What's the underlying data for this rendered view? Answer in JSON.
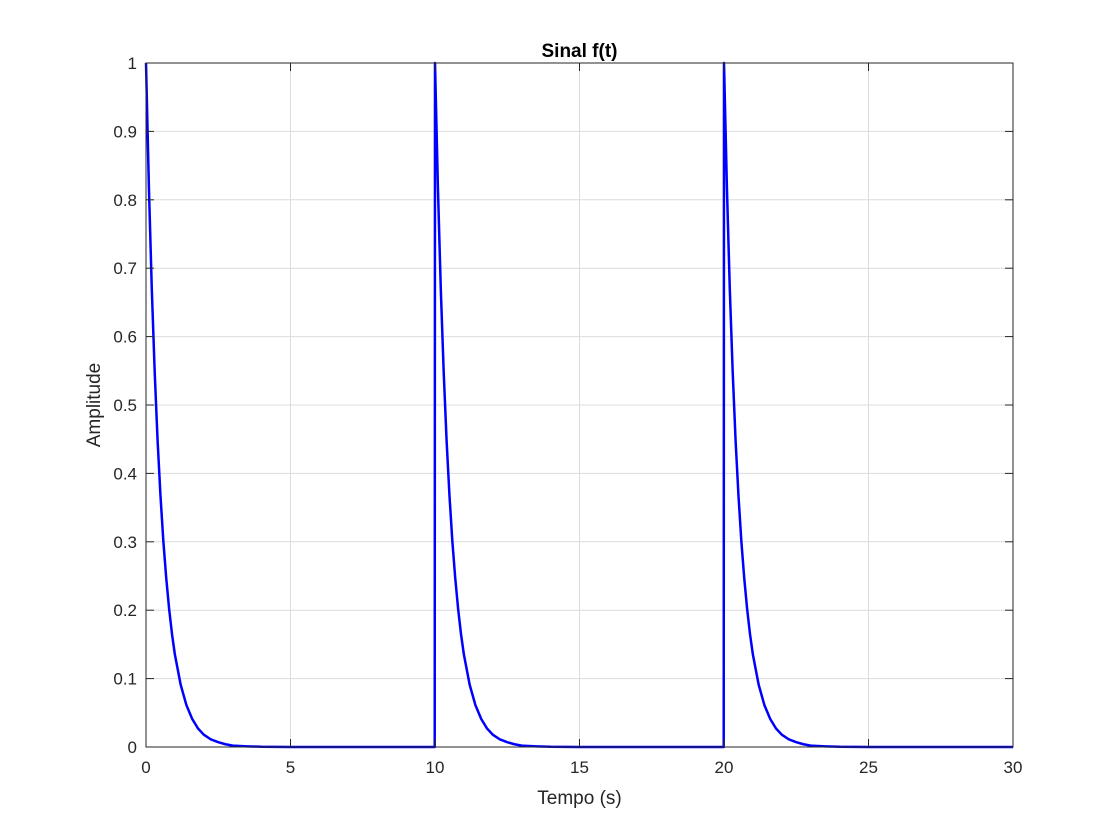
{
  "chart_data": {
    "type": "line",
    "title": "Sinal f(t)",
    "xlabel": "Tempo (s)",
    "ylabel": "Amplitude",
    "xlim": [
      0,
      30
    ],
    "ylim": [
      0,
      1
    ],
    "xticks": [
      0,
      5,
      10,
      15,
      20,
      25,
      30
    ],
    "xtick_labels": [
      "0",
      "5",
      "10",
      "15",
      "20",
      "25",
      "30"
    ],
    "yticks": [
      0,
      0.1,
      0.2,
      0.3,
      0.4,
      0.5,
      0.6,
      0.7,
      0.8,
      0.9,
      1
    ],
    "ytick_labels": [
      "0",
      "0.1",
      "0.2",
      "0.3",
      "0.4",
      "0.5",
      "0.6",
      "0.7",
      "0.8",
      "0.9",
      "1"
    ],
    "grid": true,
    "legend": "none",
    "series": [
      {
        "color": "#0000ff",
        "x": [
          0,
          0.1,
          0.2,
          0.3,
          0.4,
          0.5,
          0.6,
          0.7,
          0.8,
          0.9,
          1.0,
          1.2,
          1.4,
          1.6,
          1.8,
          2.0,
          2.25,
          2.5,
          2.75,
          3.0,
          3.5,
          4.0,
          5.0,
          6.0,
          8.0,
          9.99,
          10.0,
          10.1,
          10.2,
          10.3,
          10.4,
          10.5,
          10.6,
          10.7,
          10.8,
          10.9,
          11.0,
          11.2,
          11.4,
          11.6,
          11.8,
          12.0,
          12.25,
          12.5,
          12.75,
          13.0,
          13.5,
          14.0,
          15.0,
          16.0,
          18.0,
          19.99,
          20.0,
          20.1,
          20.2,
          20.3,
          20.4,
          20.5,
          20.6,
          20.7,
          20.8,
          20.9,
          21.0,
          21.2,
          21.4,
          21.6,
          21.8,
          22.0,
          22.25,
          22.5,
          22.75,
          23.0,
          23.5,
          24.0,
          25.0,
          26.0,
          28.0,
          30.0
        ],
        "y": [
          1,
          0.819,
          0.67,
          0.549,
          0.449,
          0.368,
          0.301,
          0.247,
          0.202,
          0.165,
          0.135,
          0.091,
          0.061,
          0.041,
          0.027,
          0.018,
          0.011,
          0.007,
          0.004,
          0.002,
          0.001,
          0.0003,
          0,
          0,
          0,
          0,
          1,
          0.819,
          0.67,
          0.549,
          0.449,
          0.368,
          0.301,
          0.247,
          0.202,
          0.165,
          0.135,
          0.091,
          0.061,
          0.041,
          0.027,
          0.018,
          0.011,
          0.007,
          0.004,
          0.002,
          0.001,
          0.0003,
          0,
          0,
          0,
          0,
          1,
          0.819,
          0.67,
          0.549,
          0.449,
          0.368,
          0.301,
          0.247,
          0.202,
          0.165,
          0.135,
          0.091,
          0.061,
          0.041,
          0.027,
          0.018,
          0.011,
          0.007,
          0.004,
          0.002,
          0.001,
          0.0003,
          0,
          0,
          0,
          0
        ]
      }
    ]
  }
}
